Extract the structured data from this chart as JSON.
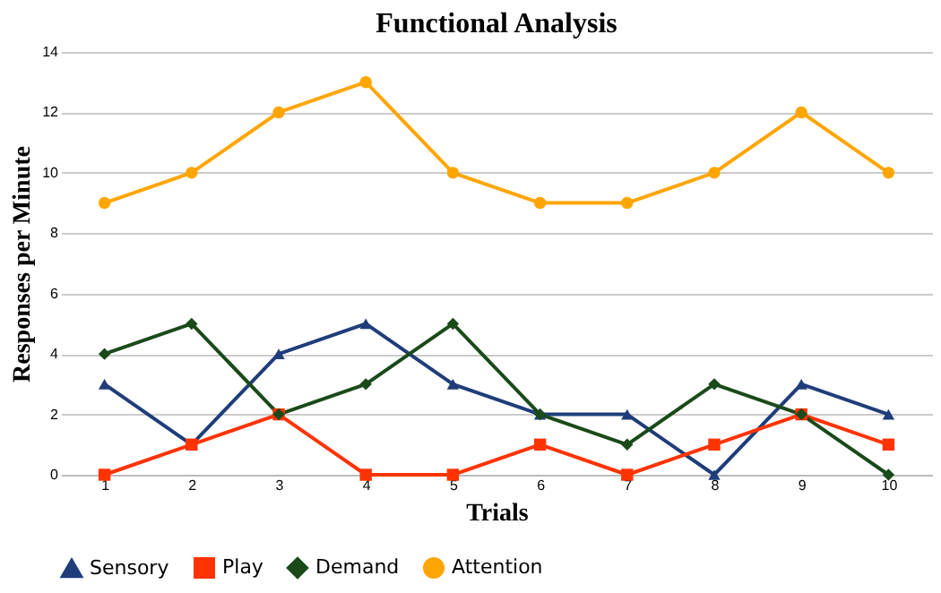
{
  "chart_data": {
    "type": "line",
    "title": "Functional Analysis",
    "xlabel": "Trials",
    "ylabel": "Responses per Minute",
    "categories": [
      "1",
      "2",
      "3",
      "4",
      "5",
      "6",
      "7",
      "8",
      "9",
      "10"
    ],
    "series": [
      {
        "name": "Sensory",
        "color": "#1f3d7a",
        "marker": "triangle",
        "values": [
          3,
          1,
          4,
          5,
          3,
          2,
          2,
          0,
          3,
          2
        ]
      },
      {
        "name": "Play",
        "color": "#ff3300",
        "marker": "square",
        "values": [
          0,
          1,
          2,
          0,
          0,
          1,
          0,
          1,
          2,
          1
        ]
      },
      {
        "name": "Demand",
        "color": "#1a4a1a",
        "marker": "diamond",
        "values": [
          4,
          5,
          2,
          3,
          5,
          2,
          1,
          3,
          2,
          0
        ]
      },
      {
        "name": "Attention",
        "color": "#ffa500",
        "marker": "circle",
        "values": [
          9,
          10,
          12,
          13,
          10,
          9,
          9,
          10,
          12,
          10
        ]
      }
    ],
    "ylim": [
      0,
      14
    ],
    "yticks": [
      0,
      2,
      4,
      6,
      8,
      10,
      12,
      14
    ],
    "grid": "y",
    "legend": "bottom",
    "line_style": "solid"
  }
}
